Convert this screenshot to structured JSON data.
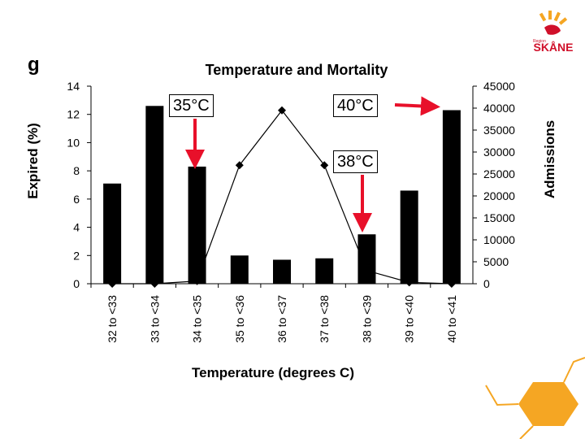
{
  "slide": {
    "letter": "g",
    "logo_text": "SKÅNE",
    "logo_small_text": "Region",
    "accent_color": "#f5a623",
    "logo_red": "#d0102a"
  },
  "annotations": [
    {
      "text": "35°C",
      "points_to": "34 to <35"
    },
    {
      "text": "40°C",
      "points_to": "40 to <41"
    },
    {
      "text": "38°C",
      "points_to": "38 to <39"
    }
  ],
  "chart_data": {
    "type": "bar",
    "title": "Temperature and Mortality",
    "xlabel": "Temperature (degrees C)",
    "ylabel": "Expired (%)",
    "y2label": "Admissions",
    "categories": [
      "32 to <33",
      "33 to <34",
      "34 to <35",
      "35 to <36",
      "36 to <37",
      "37 to <38",
      "38 to <39",
      "39 to <40",
      "40 to <41"
    ],
    "ylim": [
      0,
      14
    ],
    "yticks": [
      "0",
      "2",
      "4",
      "6",
      "8",
      "10",
      "12",
      "14"
    ],
    "y2lim": [
      0,
      45000
    ],
    "y2ticks": [
      "0",
      "5000",
      "10000",
      "15000",
      "20000",
      "25000",
      "30000",
      "35000",
      "40000",
      "45000"
    ],
    "series": [
      {
        "name": "Expired (%)",
        "type": "bar",
        "axis": "left",
        "values": [
          7.1,
          12.6,
          8.3,
          2.0,
          1.7,
          1.8,
          3.5,
          6.6,
          12.3
        ]
      },
      {
        "name": "Admissions",
        "type": "line",
        "axis": "right",
        "values": [
          0,
          0,
          600,
          27000,
          39500,
          27000,
          3000,
          300,
          0
        ]
      }
    ],
    "bar_color": "#000000",
    "line_color": "#000000",
    "arrow_color": "#e8102a"
  }
}
